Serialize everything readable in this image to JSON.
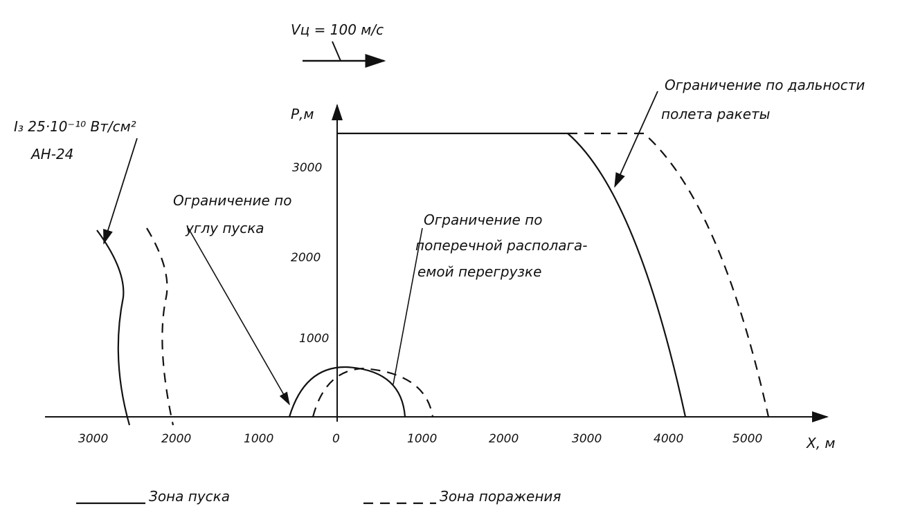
{
  "velocity_label": "Vц = 100 м/с",
  "axes": {
    "y_label": "Р,м",
    "x_label": "Х, м",
    "y_tick_labels": [
      "1000",
      "2000",
      "3000"
    ],
    "x_tick_labels": [
      "3000",
      "2000",
      "1000",
      "0",
      "1000",
      "2000",
      "3000",
      "4000",
      "5000"
    ]
  },
  "annotations": {
    "range_limit": [
      "Ограничение по дальности",
      "полета ракеты"
    ],
    "target": [
      "I₃ 25·10⁻¹⁰ Вт/см²",
      "АН-24"
    ],
    "launch_angle_limit": [
      "Ограничение по",
      "углу пуска"
    ],
    "overload_limit": [
      "Ограничение по",
      "поперечной располага-",
      "емой перегрузке"
    ]
  },
  "legend": {
    "launch_zone": "Зона пуска",
    "kill_zone": "Зона поражения"
  }
}
